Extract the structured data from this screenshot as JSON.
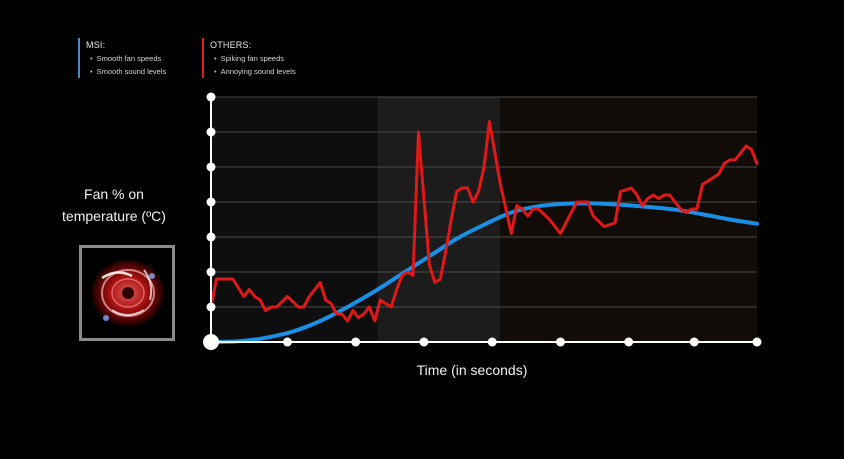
{
  "legend": {
    "msi": {
      "title": "MSI:",
      "items": [
        "Smooth fan speeds",
        "Smooth sound levels"
      ],
      "color": "#3f8fd8"
    },
    "others": {
      "title": "OTHERS:",
      "items": [
        "Spiking fan speeds",
        "Annoying sound levels"
      ],
      "color": "#e02020"
    }
  },
  "chart_data": {
    "type": "line",
    "title": "",
    "xlabel": "Time (in seconds)",
    "ylabel": "Fan % on temperature (ºC)",
    "xlim": [
      0,
      100
    ],
    "ylim": [
      0,
      7
    ],
    "grid": true,
    "series": [
      {
        "name": "MSI",
        "color": "#1a8fe6",
        "x": [
          0,
          5,
          10,
          15,
          20,
          25,
          30,
          35,
          40,
          45,
          50,
          55,
          60,
          65,
          70,
          75,
          80,
          85,
          90,
          95,
          100
        ],
        "values": [
          0,
          0.02,
          0.12,
          0.3,
          0.6,
          1.0,
          1.45,
          1.95,
          2.45,
          2.95,
          3.35,
          3.7,
          3.88,
          3.95,
          3.96,
          3.92,
          3.86,
          3.78,
          3.65,
          3.5,
          3.38
        ]
      },
      {
        "name": "OTHERS",
        "color": "#e01818",
        "x": [
          0,
          1,
          2,
          4,
          6,
          7,
          8,
          9,
          10,
          11,
          12,
          14,
          16,
          17,
          18,
          20,
          21,
          22,
          23,
          24,
          25,
          26,
          27,
          28,
          29,
          30,
          31,
          33,
          34,
          35,
          36,
          37,
          38,
          40,
          41,
          42,
          43,
          44,
          45,
          46,
          47,
          48,
          49,
          50,
          51,
          53,
          55,
          56,
          57,
          58,
          59,
          60,
          62,
          64,
          65,
          67,
          69,
          70,
          72,
          74,
          75,
          77,
          78,
          79,
          80,
          81,
          82,
          83,
          84,
          86,
          87,
          88,
          89,
          90,
          91,
          92,
          93,
          94,
          95,
          96,
          97,
          98,
          99,
          100
        ],
        "values": [
          1.0,
          1.8,
          1.8,
          1.8,
          1.3,
          1.5,
          1.3,
          1.2,
          0.9,
          1.0,
          1.0,
          1.3,
          1.0,
          1.0,
          1.3,
          1.7,
          1.2,
          1.1,
          0.8,
          0.8,
          0.6,
          0.9,
          0.7,
          0.8,
          1.0,
          0.6,
          1.2,
          1.0,
          1.5,
          1.9,
          2.0,
          1.9,
          6.0,
          2.2,
          1.7,
          1.8,
          2.6,
          3.5,
          4.3,
          4.4,
          4.4,
          4.0,
          4.3,
          5.0,
          6.3,
          4.5,
          3.1,
          3.9,
          3.8,
          3.6,
          3.8,
          3.8,
          3.5,
          3.1,
          3.4,
          4.0,
          4.0,
          3.6,
          3.3,
          3.4,
          4.3,
          4.4,
          4.2,
          3.9,
          4.1,
          4.2,
          4.1,
          4.2,
          4.2,
          3.8,
          3.7,
          3.8,
          3.8,
          4.5,
          4.6,
          4.7,
          4.8,
          5.1,
          5.2,
          5.2,
          5.4,
          5.6,
          5.5,
          5.1
        ]
      }
    ]
  }
}
